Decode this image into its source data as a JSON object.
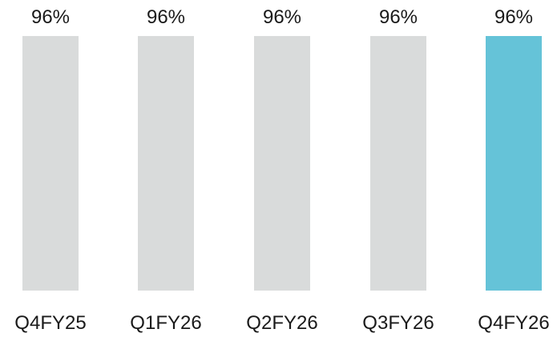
{
  "chart_data": {
    "type": "bar",
    "categories": [
      "Q4FY25",
      "Q1FY26",
      "Q2FY26",
      "Q3FY26",
      "Q4FY26"
    ],
    "values": [
      96,
      96,
      96,
      96,
      96
    ],
    "data_labels": [
      "96%",
      "96%",
      "96%",
      "96%",
      "96%"
    ],
    "unit": "%",
    "ylim": [
      0,
      96
    ],
    "grid": false,
    "legend": "none",
    "colors": {
      "default_bar": "#d9dbdb",
      "highlight_bar": "#65c3d8",
      "text": "#1a1a1a"
    },
    "highlight_index": 4
  }
}
